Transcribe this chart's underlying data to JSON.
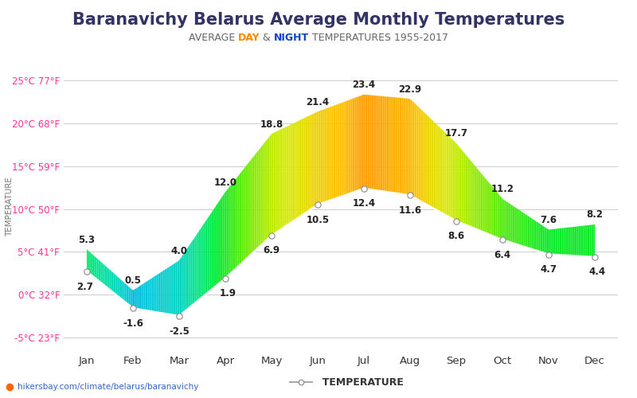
{
  "title": "Baranavichy Belarus Average Monthly Temperatures",
  "subtitle_parts": [
    "AVERAGE ",
    "DAY",
    " & ",
    "NIGHT",
    " TEMPERATURES 1955-2017"
  ],
  "subtitle_colors": [
    "#666666",
    "#ff8800",
    "#666666",
    "#1144cc",
    "#666666"
  ],
  "months": [
    "Jan",
    "Feb",
    "Mar",
    "Apr",
    "May",
    "Jun",
    "Jul",
    "Aug",
    "Sep",
    "Oct",
    "Nov",
    "Dec"
  ],
  "day_temps": [
    5.3,
    0.5,
    4.0,
    12.0,
    18.8,
    21.4,
    23.4,
    22.9,
    17.7,
    11.2,
    7.6,
    8.2
  ],
  "night_temps": [
    2.7,
    -1.6,
    -2.5,
    1.9,
    6.9,
    10.5,
    12.4,
    11.6,
    8.6,
    6.4,
    4.7,
    4.4
  ],
  "ylim": [
    -6.5,
    27
  ],
  "yticks_c": [
    -5,
    0,
    5,
    10,
    15,
    20,
    25
  ],
  "yticks_f": [
    23,
    32,
    41,
    50,
    59,
    68,
    77
  ],
  "ylabel_color": "#ff3399",
  "grid_color": "#cccccc",
  "background_color": "#ffffff",
  "title_color": "#333366",
  "title_fontsize": 15,
  "subtitle_fontsize": 9,
  "ylabel": "TEMPERATURE",
  "watermark": "hikersbay.com/climate/belarus/baranavichy",
  "legend_label": "  TEMPERATURE"
}
